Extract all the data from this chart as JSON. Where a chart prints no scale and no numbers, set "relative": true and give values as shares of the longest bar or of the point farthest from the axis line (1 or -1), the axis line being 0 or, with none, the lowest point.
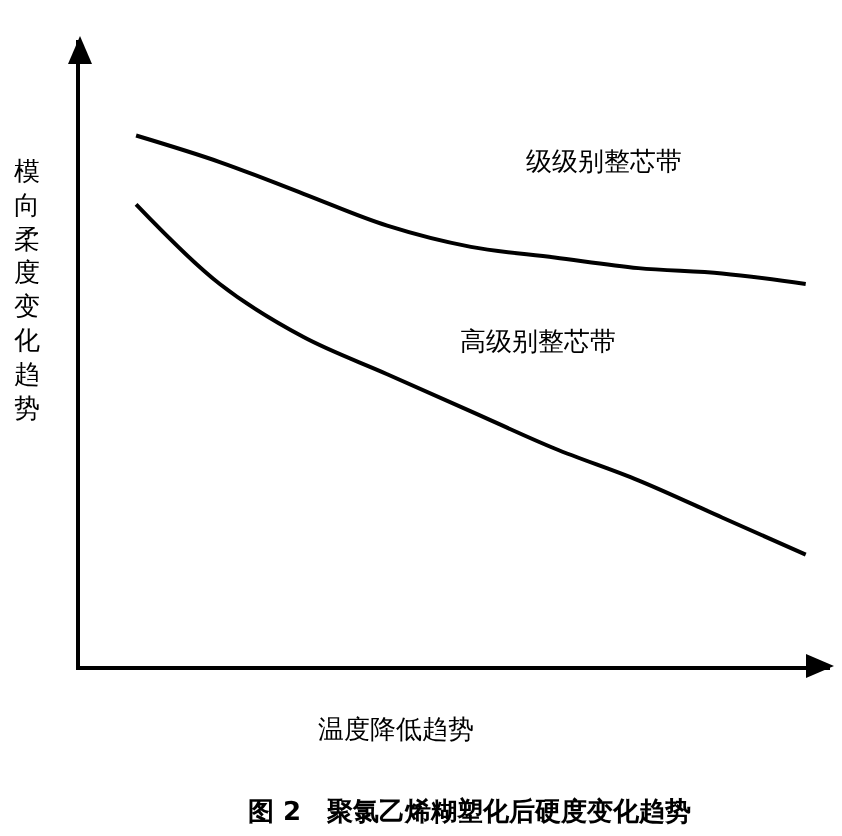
{
  "chart_data": {
    "type": "line",
    "relative": true,
    "title": "图 2　聚氯乙烯糊塑化后硬度变化趋势",
    "xlabel": "温度降低趋势",
    "ylabel": "模向柔度变化趋势",
    "categories": [
      null,
      null,
      null,
      null,
      null,
      null,
      null,
      null,
      null
    ],
    "series": [
      {
        "name": "级级别整芯带",
        "color": "#000000",
        "values": [
          1,
          0.95,
          0.89,
          0.83,
          0.79,
          0.77,
          0.75,
          0.74,
          0.72
        ]
      },
      {
        "name": "高级别整芯带",
        "color": "#000000",
        "values": [
          0.87,
          0.72,
          0.62,
          0.55,
          0.48,
          0.41,
          0.35,
          0.28,
          0.21
        ]
      }
    ],
    "legend": false,
    "marker": "none",
    "line_style": "solid"
  }
}
